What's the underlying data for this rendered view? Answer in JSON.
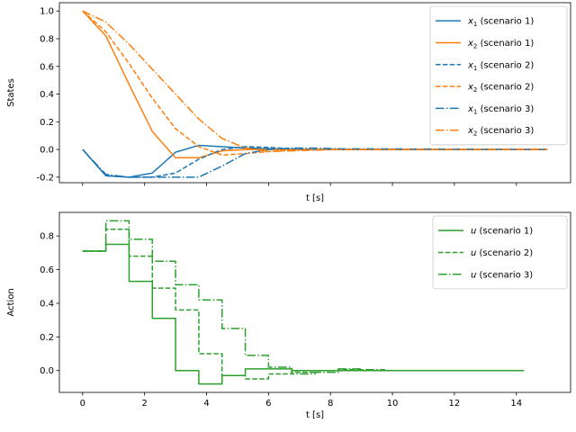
{
  "chart_data": [
    {
      "type": "line",
      "xlabel": "t [s]",
      "ylabel": "States",
      "xlim": [
        -0.75,
        15.75
      ],
      "ylim": [
        -0.24,
        1.06
      ],
      "yticks": [
        "-0.2",
        "0.0",
        "0.2",
        "0.4",
        "0.6",
        "0.8",
        "1.0"
      ],
      "show_x_ticklabels": false,
      "legend_position": "upper right",
      "series": [
        {
          "name": "x_1 (scenario 1)",
          "var": "x",
          "sub": "1",
          "label": " (scenario 1)",
          "color": "#1f77b4",
          "style": "solid",
          "x": [
            0,
            0.75,
            1.5,
            2.25,
            3.0,
            3.75,
            4.5,
            5.25,
            6.0,
            6.75,
            7.5,
            15
          ],
          "y": [
            0.0,
            -0.19,
            -0.2,
            -0.17,
            -0.02,
            0.03,
            0.02,
            0.01,
            0.005,
            0.0,
            0.0,
            0.0
          ]
        },
        {
          "name": "x_2 (scenario 1)",
          "var": "x",
          "sub": "2",
          "label": " (scenario 1)",
          "color": "#ff7f0e",
          "style": "solid",
          "x": [
            0,
            0.75,
            1.5,
            2.25,
            3.0,
            3.75,
            4.5,
            5.25,
            6.0,
            6.75,
            15
          ],
          "y": [
            1.0,
            0.82,
            0.47,
            0.13,
            -0.06,
            -0.06,
            -0.01,
            0.0,
            0.0,
            0.0,
            0.0
          ]
        },
        {
          "name": "x_1 (scenario 2)",
          "var": "x",
          "sub": "1",
          "label": " (scenario 2)",
          "color": "#1f77b4",
          "style": "dashed",
          "x": [
            0,
            0.75,
            1.5,
            2.25,
            3.0,
            3.75,
            4.5,
            5.25,
            6.0,
            6.75,
            7.5,
            15
          ],
          "y": [
            0.0,
            -0.19,
            -0.2,
            -0.2,
            -0.17,
            -0.07,
            0.0,
            0.02,
            0.015,
            0.005,
            0.0,
            0.0
          ]
        },
        {
          "name": "x_2 (scenario 2)",
          "var": "x",
          "sub": "2",
          "label": " (scenario 2)",
          "color": "#ff7f0e",
          "style": "dashed",
          "x": [
            0,
            0.75,
            1.5,
            2.25,
            3.0,
            3.75,
            4.5,
            5.25,
            6.0,
            6.75,
            7.5,
            15
          ],
          "y": [
            1.0,
            0.85,
            0.62,
            0.37,
            0.15,
            0.02,
            -0.04,
            -0.03,
            -0.015,
            -0.005,
            0.0,
            0.0
          ]
        },
        {
          "name": "x_1 (scenario 3)",
          "var": "x",
          "sub": "1",
          "label": " (scenario 3)",
          "color": "#1f77b4",
          "style": "dashdot",
          "x": [
            0,
            0.75,
            1.5,
            2.25,
            3.0,
            3.75,
            4.5,
            5.25,
            6.0,
            6.75,
            7.5,
            8.25,
            15
          ],
          "y": [
            0.0,
            -0.18,
            -0.2,
            -0.2,
            -0.2,
            -0.2,
            -0.12,
            -0.03,
            0.0,
            0.01,
            0.01,
            0.005,
            0.0
          ]
        },
        {
          "name": "x_2 (scenario 3)",
          "var": "x",
          "sub": "2",
          "label": " (scenario 3)",
          "color": "#ff7f0e",
          "style": "dashdot",
          "x": [
            0,
            0.75,
            1.5,
            2.25,
            3.0,
            3.75,
            4.5,
            5.25,
            6.0,
            6.75,
            7.5,
            8.25,
            15
          ],
          "y": [
            1.0,
            0.92,
            0.76,
            0.58,
            0.4,
            0.22,
            0.08,
            0.01,
            -0.015,
            -0.01,
            -0.005,
            0.0,
            0.0
          ]
        }
      ]
    },
    {
      "type": "step",
      "xlabel": "t [s]",
      "ylabel": "Action",
      "xlim": [
        -0.75,
        15.75
      ],
      "ylim": [
        -0.13,
        0.94
      ],
      "xticks": [
        "0",
        "2",
        "4",
        "6",
        "8",
        "10",
        "12",
        "14"
      ],
      "yticks": [
        "0.0",
        "0.2",
        "0.4",
        "0.6",
        "0.8"
      ],
      "legend_position": "upper right",
      "series": [
        {
          "name": "u (scenario 1)",
          "var": "u",
          "label": " (scenario 1)",
          "color": "#2ca02c",
          "style": "solid",
          "x": [
            0,
            0.75,
            1.5,
            2.25,
            3.0,
            3.75,
            4.5,
            5.25,
            6.0,
            6.75,
            7.5,
            8.25,
            9.0,
            14.25
          ],
          "y": [
            0.71,
            0.75,
            0.53,
            0.31,
            0.0,
            -0.08,
            -0.03,
            0.01,
            0.01,
            0.0,
            0.0,
            0.0,
            0.0,
            0.0
          ]
        },
        {
          "name": "u (scenario 2)",
          "var": "u",
          "label": " (scenario 2)",
          "color": "#2ca02c",
          "style": "dashed",
          "x": [
            0,
            0.75,
            1.5,
            2.25,
            3.0,
            3.75,
            4.5,
            5.25,
            6.0,
            6.75,
            7.5,
            8.25,
            9.0,
            9.75
          ],
          "y": [
            0.71,
            0.84,
            0.68,
            0.49,
            0.36,
            0.1,
            -0.03,
            -0.05,
            -0.02,
            -0.01,
            0.0,
            0.005,
            0.0,
            0.0
          ]
        },
        {
          "name": "u (scenario 3)",
          "var": "u",
          "label": " (scenario 3)",
          "color": "#2ca02c",
          "style": "dashdot",
          "x": [
            0,
            0.75,
            1.5,
            2.25,
            3.0,
            3.75,
            4.5,
            5.25,
            6.0,
            6.75,
            7.5,
            8.25,
            9.0,
            9.75
          ],
          "y": [
            0.71,
            0.89,
            0.78,
            0.65,
            0.51,
            0.42,
            0.25,
            0.09,
            0.02,
            -0.02,
            -0.01,
            0.01,
            0.005,
            0.0
          ]
        }
      ]
    }
  ]
}
